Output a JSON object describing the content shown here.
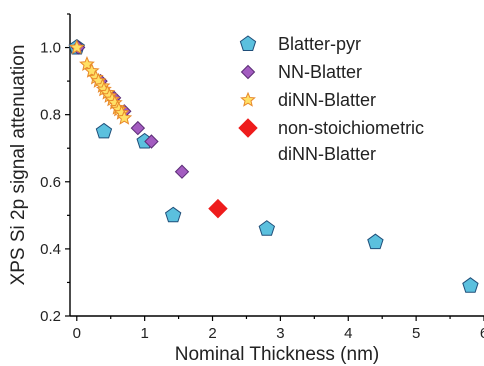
{
  "chart_data": {
    "type": "scatter",
    "title": "",
    "xlabel": "Nominal Thickness (nm)",
    "ylabel": "XPS Si 2p signal attenuation",
    "xlim": [
      -0.1,
      6
    ],
    "ylim": [
      0.2,
      1.1
    ],
    "x_ticks": [
      0,
      1,
      2,
      3,
      4,
      5,
      6
    ],
    "x_tick_labels": [
      "0",
      "1",
      "2",
      "3",
      "4",
      "5",
      "6"
    ],
    "y_ticks": [
      0.2,
      0.4,
      0.6,
      0.8,
      1.0
    ],
    "y_tick_labels": [
      "0.2",
      "0.4",
      "0.6",
      "0.8",
      "1.0"
    ],
    "grid": false,
    "legend_position": "top-right",
    "series": [
      {
        "name": "Blatter-pyr",
        "marker": "pentagon",
        "color": "#5bc0de",
        "edge": "#1f4e79",
        "points": [
          [
            0,
            1.0
          ],
          [
            0.4,
            0.75
          ],
          [
            1.0,
            0.72
          ],
          [
            1.42,
            0.5
          ],
          [
            2.8,
            0.46
          ],
          [
            4.4,
            0.42
          ],
          [
            5.8,
            0.29
          ]
        ]
      },
      {
        "name": "NN-Blatter",
        "marker": "diamond",
        "color": "#a35cc0",
        "edge": "#5a2d75",
        "points": [
          [
            0.02,
            1.0
          ],
          [
            0.35,
            0.9
          ],
          [
            0.55,
            0.85
          ],
          [
            0.7,
            0.81
          ],
          [
            0.9,
            0.76
          ],
          [
            1.1,
            0.72
          ],
          [
            1.55,
            0.63
          ]
        ]
      },
      {
        "name": "diNN-Blatter",
        "marker": "star",
        "color": "#ffe066",
        "edge": "#e8892b",
        "points": [
          [
            0.0,
            1.0
          ],
          [
            0.15,
            0.95
          ],
          [
            0.22,
            0.93
          ],
          [
            0.28,
            0.91
          ],
          [
            0.32,
            0.9
          ],
          [
            0.38,
            0.885
          ],
          [
            0.4,
            0.875
          ],
          [
            0.45,
            0.865
          ],
          [
            0.48,
            0.855
          ],
          [
            0.52,
            0.845
          ],
          [
            0.56,
            0.835
          ],
          [
            0.6,
            0.82
          ],
          [
            0.62,
            0.815
          ],
          [
            0.66,
            0.805
          ],
          [
            0.7,
            0.79
          ]
        ]
      },
      {
        "name": "non-stoichiometric",
        "name_line2": "diNN-Blatter",
        "marker": "diamond",
        "color": "#ee1c1c",
        "edge": "#ee1c1c",
        "points": [
          [
            2.08,
            0.52
          ]
        ]
      }
    ]
  }
}
